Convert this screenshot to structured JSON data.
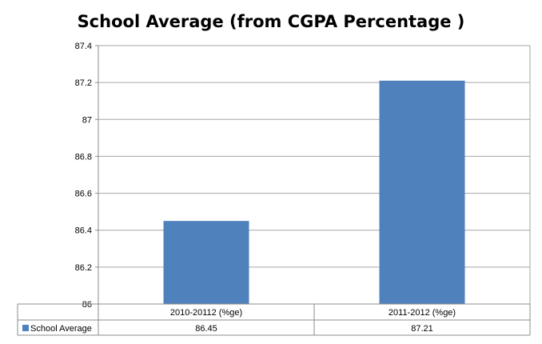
{
  "chart_data": {
    "type": "bar",
    "title": "School Average (from  CGPA Percentage )",
    "categories": [
      "2010-20112 (%ge)",
      "2011-2012 (%ge)"
    ],
    "series": [
      {
        "name": "School Average",
        "values": [
          86.45,
          87.21
        ],
        "color": "#4f81bd"
      }
    ],
    "ylim": [
      86,
      87.4
    ],
    "y_ticks": [
      "86",
      "86.2",
      "86.4",
      "86.6",
      "86.8",
      "87",
      "87.2",
      "87.4"
    ],
    "grid": true,
    "data_table": {
      "row_label": "School Average",
      "values": [
        "86.45",
        "87.21"
      ]
    }
  }
}
